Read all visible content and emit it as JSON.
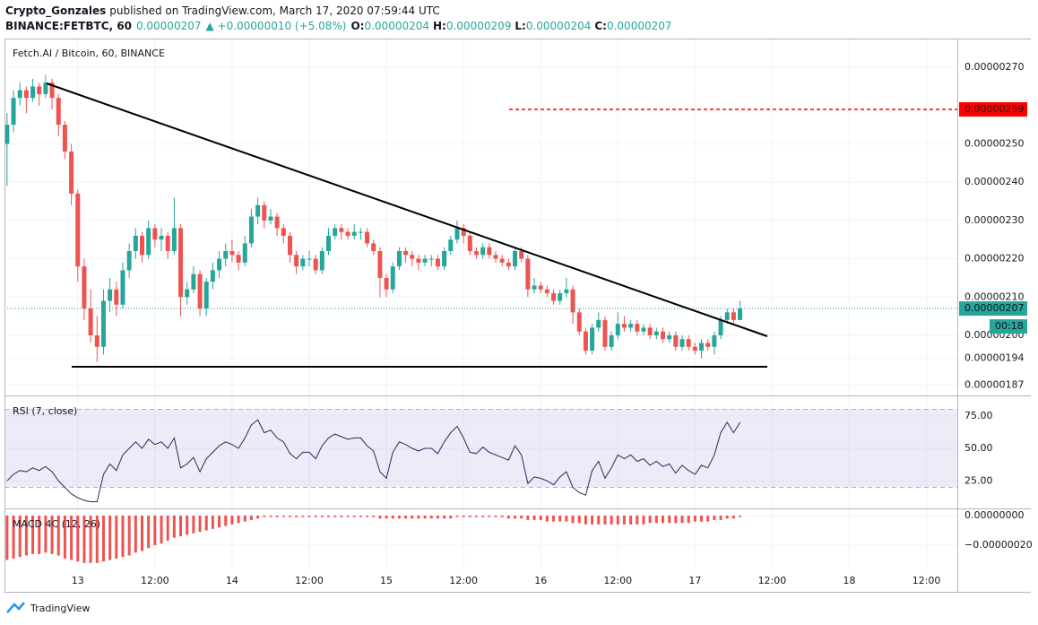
{
  "header": {
    "author": "Crypto_Gonzales",
    "published": "published on TradingView.com, March 17, 2020 07:59:44 UTC",
    "symbol": "BINANCE:FETBTC, 60",
    "last": "0.00000207",
    "change": "▲ +0.00000010 (+5.08%)",
    "quote": [
      {
        "label": "O:",
        "value": "0.00000204"
      },
      {
        "label": "H:",
        "value": "0.00000209"
      },
      {
        "label": "L:",
        "value": "0.00000204"
      },
      {
        "label": "C:",
        "value": "0.00000207"
      }
    ]
  },
  "footer": {
    "brand": "TradingView"
  },
  "chart_data": {
    "type": "candlestick",
    "title": "Fetch.AI / Bitcoin, 60, BINANCE",
    "up_color": "#26a69a",
    "down_color": "#ef5350",
    "grid": true,
    "xlim": [
      -11.4,
      136.8
    ],
    "xticks": [
      {
        "value": 0,
        "label": "13"
      },
      {
        "value": 12,
        "label": "12:00"
      },
      {
        "value": 24,
        "label": "14"
      },
      {
        "value": 36,
        "label": "12:00"
      },
      {
        "value": 48,
        "label": "15"
      },
      {
        "value": 60,
        "label": "12:00"
      },
      {
        "value": 72,
        "label": "16"
      },
      {
        "value": 84,
        "label": "12:00"
      },
      {
        "value": 96,
        "label": "17"
      },
      {
        "value": 108,
        "label": "12:00"
      },
      {
        "value": 120,
        "label": "18"
      },
      {
        "value": 132,
        "label": "12:00"
      }
    ],
    "ylim": [
      1.843e-06,
      2.775e-06
    ],
    "yticks": [
      {
        "value": 1.87e-06,
        "label": "0.00000187"
      },
      {
        "value": 1.94e-06,
        "label": "0.00000194"
      },
      {
        "value": 2e-06,
        "label": "0.00000200"
      },
      {
        "value": 2.1e-06,
        "label": "0.00000210"
      },
      {
        "value": 2.2e-06,
        "label": "0.00000220"
      },
      {
        "value": 2.3e-06,
        "label": "0.00000230"
      },
      {
        "value": 2.4e-06,
        "label": "0.00000240"
      },
      {
        "value": 2.5e-06,
        "label": "0.00000250"
      },
      {
        "value": 2.7e-06,
        "label": "0.00000270"
      }
    ],
    "lines": [
      {
        "value": 2.59e-06,
        "label": "0.00000259",
        "color": "#ff0000"
      }
    ],
    "last_price": {
      "value": 2.07e-06,
      "label": "0.00000207",
      "countdown": "00:18",
      "color": "#26a69a"
    },
    "x": [
      -11,
      -10,
      -9,
      -8,
      -7,
      -6,
      -5,
      -4,
      -3,
      -2,
      -1,
      0,
      1,
      2,
      3,
      4,
      5,
      6,
      7,
      8,
      9,
      10,
      11,
      12,
      13,
      14,
      15,
      16,
      17,
      18,
      19,
      20,
      21,
      22,
      23,
      24,
      25,
      26,
      27,
      28,
      29,
      30,
      31,
      32,
      33,
      34,
      35,
      36,
      37,
      38,
      39,
      40,
      41,
      42,
      43,
      44,
      45,
      46,
      47,
      48,
      49,
      50,
      51,
      52,
      53,
      54,
      55,
      56,
      57,
      58,
      59,
      60,
      61,
      62,
      63,
      64,
      65,
      66,
      67,
      68,
      69,
      70,
      71,
      72,
      73,
      74,
      75,
      76,
      77,
      78,
      79,
      80,
      81,
      82,
      83,
      84,
      85,
      86,
      87,
      88,
      89,
      90,
      91,
      92,
      93,
      94,
      95,
      96,
      97,
      98,
      99,
      100,
      101,
      102,
      103
    ],
    "ohlc": [
      [
        2.5e-06,
        2.58e-06,
        2.39e-06,
        2.55e-06
      ],
      [
        2.55e-06,
        2.64e-06,
        2.53e-06,
        2.62e-06
      ],
      [
        2.62e-06,
        2.66e-06,
        2.6e-06,
        2.64e-06
      ],
      [
        2.64e-06,
        2.65e-06,
        2.58e-06,
        2.62e-06
      ],
      [
        2.62e-06,
        2.67e-06,
        2.61e-06,
        2.65e-06
      ],
      [
        2.65e-06,
        2.66e-06,
        2.6e-06,
        2.63e-06
      ],
      [
        2.63e-06,
        2.68e-06,
        2.62e-06,
        2.66e-06
      ],
      [
        2.66e-06,
        2.67e-06,
        2.59e-06,
        2.62e-06
      ],
      [
        2.62e-06,
        2.63e-06,
        2.52e-06,
        2.55e-06
      ],
      [
        2.55e-06,
        2.56e-06,
        2.46e-06,
        2.48e-06
      ],
      [
        2.48e-06,
        2.5e-06,
        2.34e-06,
        2.37e-06
      ],
      [
        2.37e-06,
        2.38e-06,
        2.14e-06,
        2.18e-06
      ],
      [
        2.18e-06,
        2.2e-06,
        2.04e-06,
        2.07e-06
      ],
      [
        2.07e-06,
        2.12e-06,
        1.98e-06,
        2e-06
      ],
      [
        2e-06,
        2.05e-06,
        1.93e-06,
        1.97e-06
      ],
      [
        1.97e-06,
        2.12e-06,
        1.95e-06,
        2.09e-06
      ],
      [
        2.09e-06,
        2.15e-06,
        2.06e-06,
        2.12e-06
      ],
      [
        2.12e-06,
        2.14e-06,
        2.05e-06,
        2.08e-06
      ],
      [
        2.08e-06,
        2.19e-06,
        2.07e-06,
        2.17e-06
      ],
      [
        2.17e-06,
        2.24e-06,
        2.15e-06,
        2.22e-06
      ],
      [
        2.22e-06,
        2.28e-06,
        2.2e-06,
        2.26e-06
      ],
      [
        2.26e-06,
        2.27e-06,
        2.19e-06,
        2.21e-06
      ],
      [
        2.21e-06,
        2.3e-06,
        2.2e-06,
        2.28e-06
      ],
      [
        2.28e-06,
        2.29e-06,
        2.23e-06,
        2.25e-06
      ],
      [
        2.25e-06,
        2.28e-06,
        2.22e-06,
        2.26e-06
      ],
      [
        2.26e-06,
        2.27e-06,
        2.2e-06,
        2.22e-06
      ],
      [
        2.22e-06,
        2.36e-06,
        2.21e-06,
        2.28e-06
      ],
      [
        2.28e-06,
        2.29e-06,
        2.05e-06,
        2.1e-06
      ],
      [
        2.1e-06,
        2.14e-06,
        2.08e-06,
        2.12e-06
      ],
      [
        2.12e-06,
        2.18e-06,
        2.11e-06,
        2.16e-06
      ],
      [
        2.16e-06,
        2.17e-06,
        2.05e-06,
        2.07e-06
      ],
      [
        2.07e-06,
        2.15e-06,
        2.05e-06,
        2.14e-06
      ],
      [
        2.14e-06,
        2.19e-06,
        2.12e-06,
        2.17e-06
      ],
      [
        2.17e-06,
        2.22e-06,
        2.15e-06,
        2.2e-06
      ],
      [
        2.2e-06,
        2.24e-06,
        2.18e-06,
        2.22e-06
      ],
      [
        2.22e-06,
        2.25e-06,
        2.19e-06,
        2.21e-06
      ],
      [
        2.21e-06,
        2.22e-06,
        2.17e-06,
        2.19e-06
      ],
      [
        2.19e-06,
        2.26e-06,
        2.18e-06,
        2.24e-06
      ],
      [
        2.24e-06,
        2.33e-06,
        2.23e-06,
        2.31e-06
      ],
      [
        2.31e-06,
        2.36e-06,
        2.29e-06,
        2.34e-06
      ],
      [
        2.34e-06,
        2.35e-06,
        2.28e-06,
        2.3e-06
      ],
      [
        2.3e-06,
        2.33e-06,
        2.29e-06,
        2.31e-06
      ],
      [
        2.31e-06,
        2.32e-06,
        2.26e-06,
        2.28e-06
      ],
      [
        2.28e-06,
        2.29e-06,
        2.24e-06,
        2.26e-06
      ],
      [
        2.26e-06,
        2.27e-06,
        2.19e-06,
        2.21e-06
      ],
      [
        2.21e-06,
        2.22e-06,
        2.16e-06,
        2.18e-06
      ],
      [
        2.18e-06,
        2.21e-06,
        2.17e-06,
        2.2e-06
      ],
      [
        2.2e-06,
        2.22e-06,
        2.18e-06,
        2.2e-06
      ],
      [
        2.2e-06,
        2.21e-06,
        2.16e-06,
        2.17e-06
      ],
      [
        2.17e-06,
        2.23e-06,
        2.16e-06,
        2.22e-06
      ],
      [
        2.22e-06,
        2.28e-06,
        2.21e-06,
        2.26e-06
      ],
      [
        2.26e-06,
        2.29e-06,
        2.25e-06,
        2.28e-06
      ],
      [
        2.28e-06,
        2.29e-06,
        2.25e-06,
        2.27e-06
      ],
      [
        2.27e-06,
        2.28e-06,
        2.25e-06,
        2.26e-06
      ],
      [
        2.26e-06,
        2.29e-06,
        2.25e-06,
        2.27e-06
      ],
      [
        2.27e-06,
        2.28e-06,
        2.25e-06,
        2.27e-06
      ],
      [
        2.27e-06,
        2.28e-06,
        2.23e-06,
        2.24e-06
      ],
      [
        2.24e-06,
        2.25e-06,
        2.21e-06,
        2.22e-06
      ],
      [
        2.22e-06,
        2.23e-06,
        2.1e-06,
        2.15e-06
      ],
      [
        2.15e-06,
        2.16e-06,
        2.1e-06,
        2.12e-06
      ],
      [
        2.12e-06,
        2.19e-06,
        2.11e-06,
        2.18e-06
      ],
      [
        2.18e-06,
        2.23e-06,
        2.17e-06,
        2.22e-06
      ],
      [
        2.22e-06,
        2.23e-06,
        2.19e-06,
        2.21e-06
      ],
      [
        2.21e-06,
        2.22e-06,
        2.18e-06,
        2.2e-06
      ],
      [
        2.2e-06,
        2.21e-06,
        2.17e-06,
        2.19e-06
      ],
      [
        2.19e-06,
        2.21e-06,
        2.18e-06,
        2.2e-06
      ],
      [
        2.2e-06,
        2.21e-06,
        2.18e-06,
        2.2e-06
      ],
      [
        2.2e-06,
        2.21e-06,
        2.17e-06,
        2.18e-06
      ],
      [
        2.18e-06,
        2.23e-06,
        2.17e-06,
        2.22e-06
      ],
      [
        2.22e-06,
        2.26e-06,
        2.21e-06,
        2.25e-06
      ],
      [
        2.25e-06,
        2.3e-06,
        2.24e-06,
        2.28e-06
      ],
      [
        2.28e-06,
        2.29e-06,
        2.24e-06,
        2.26e-06
      ],
      [
        2.26e-06,
        2.27e-06,
        2.21e-06,
        2.22e-06
      ],
      [
        2.22e-06,
        2.23e-06,
        2.2e-06,
        2.21e-06
      ],
      [
        2.21e-06,
        2.24e-06,
        2.2e-06,
        2.23e-06
      ],
      [
        2.23e-06,
        2.24e-06,
        2.2e-06,
        2.21e-06
      ],
      [
        2.21e-06,
        2.22e-06,
        2.19e-06,
        2.2e-06
      ],
      [
        2.2e-06,
        2.21e-06,
        2.18e-06,
        2.19e-06
      ],
      [
        2.19e-06,
        2.2e-06,
        2.17e-06,
        2.18e-06
      ],
      [
        2.18e-06,
        2.23e-06,
        2.17e-06,
        2.22e-06
      ],
      [
        2.22e-06,
        2.23e-06,
        2.19e-06,
        2.2e-06
      ],
      [
        2.2e-06,
        2.21e-06,
        2.1e-06,
        2.12e-06
      ],
      [
        2.12e-06,
        2.15e-06,
        2.11e-06,
        2.13e-06
      ],
      [
        2.13e-06,
        2.14e-06,
        2.11e-06,
        2.12e-06
      ],
      [
        2.12e-06,
        2.13e-06,
        2.1e-06,
        2.11e-06
      ],
      [
        2.11e-06,
        2.12e-06,
        2.08e-06,
        2.09e-06
      ],
      [
        2.09e-06,
        2.12e-06,
        2.08e-06,
        2.11e-06
      ],
      [
        2.11e-06,
        2.15e-06,
        2.1e-06,
        2.12e-06
      ],
      [
        2.12e-06,
        2.13e-06,
        2.03e-06,
        2.06e-06
      ],
      [
        2.06e-06,
        2.07e-06,
        2e-06,
        2.01e-06
      ],
      [
        2.01e-06,
        2.02e-06,
        1.95e-06,
        1.96e-06
      ],
      [
        1.96e-06,
        2.03e-06,
        1.95e-06,
        2.02e-06
      ],
      [
        2.02e-06,
        2.06e-06,
        2.01e-06,
        2.04e-06
      ],
      [
        2.04e-06,
        2.05e-06,
        1.96e-06,
        1.97e-06
      ],
      [
        1.97e-06,
        2.01e-06,
        1.96e-06,
        2e-06
      ],
      [
        2e-06,
        2.06e-06,
        1.99e-06,
        2.03e-06
      ],
      [
        2.03e-06,
        2.05e-06,
        2.01e-06,
        2.02e-06
      ],
      [
        2.02e-06,
        2.04e-06,
        2.01e-06,
        2.03e-06
      ],
      [
        2.03e-06,
        2.04e-06,
        2e-06,
        2.01e-06
      ],
      [
        2.01e-06,
        2.03e-06,
        2e-06,
        2.02e-06
      ],
      [
        2.02e-06,
        2.03e-06,
        1.99e-06,
        2e-06
      ],
      [
        2e-06,
        2.02e-06,
        1.99e-06,
        2.01e-06
      ],
      [
        2.01e-06,
        2.02e-06,
        1.98e-06,
        1.99e-06
      ],
      [
        1.99e-06,
        2.01e-06,
        1.98e-06,
        2e-06
      ],
      [
        2e-06,
        2.01e-06,
        1.96e-06,
        1.97e-06
      ],
      [
        1.97e-06,
        2e-06,
        1.96e-06,
        1.99e-06
      ],
      [
        1.99e-06,
        2e-06,
        1.96e-06,
        1.97e-06
      ],
      [
        1.97e-06,
        1.98e-06,
        1.95e-06,
        1.96e-06
      ],
      [
        1.96e-06,
        1.99e-06,
        1.94e-06,
        1.98e-06
      ],
      [
        1.98e-06,
        1.99e-06,
        1.96e-06,
        1.97e-06
      ],
      [
        1.97e-06,
        2.01e-06,
        1.95e-06,
        2e-06
      ],
      [
        2e-06,
        2.05e-06,
        1.99e-06,
        2.04e-06
      ],
      [
        2.04e-06,
        2.07e-06,
        2.03e-06,
        2.06e-06
      ],
      [
        2.06e-06,
        2.07e-06,
        2.03e-06,
        2.04e-06
      ],
      [
        2.04e-06,
        2.09e-06,
        2.04e-06,
        2.07e-06
      ]
    ],
    "indicators": [
      {
        "type": "line",
        "name": "RSI (7, close)",
        "color": "#1e2f5a",
        "band": [
          20,
          80
        ],
        "band_color": "#9575cd",
        "ylim": [
          3.8,
          90.7
        ],
        "yticks": [
          {
            "value": 25,
            "label": "25.00"
          },
          {
            "value": 50,
            "label": "50.00"
          },
          {
            "value": 75,
            "label": "75.00"
          }
        ],
        "values": [
          25,
          30,
          33,
          32,
          35,
          33,
          36,
          32,
          25,
          20,
          15,
          12,
          10,
          9,
          9,
          30,
          38,
          33,
          45,
          50,
          55,
          50,
          57,
          53,
          55,
          50,
          58,
          35,
          38,
          43,
          32,
          42,
          47,
          52,
          55,
          53,
          50,
          58,
          68,
          72,
          62,
          64,
          58,
          55,
          46,
          42,
          47,
          47,
          42,
          52,
          58,
          61,
          59,
          57,
          58,
          58,
          52,
          48,
          32,
          27,
          47,
          55,
          53,
          50,
          48,
          50,
          50,
          46,
          55,
          62,
          67,
          58,
          47,
          46,
          51,
          47,
          45,
          43,
          41,
          52,
          45,
          23,
          28,
          27,
          25,
          22,
          28,
          32,
          20,
          16,
          14,
          33,
          40,
          27,
          35,
          45,
          42,
          45,
          40,
          42,
          37,
          40,
          36,
          38,
          31,
          37,
          33,
          30,
          37,
          35,
          45,
          62,
          70,
          62,
          70
        ]
      },
      {
        "type": "bar",
        "name": "MACD 4C (12, 26)",
        "color": "#ef5350",
        "ylim": [
          -3.64e-07,
          4.85e-08
        ],
        "yticks": [
          {
            "value": -2e-07,
            "label": "−0.00000020"
          },
          {
            "value": 0,
            "label": "0.00000000"
          }
        ],
        "values": [
          -3e-07,
          -2.9e-07,
          -2.8e-07,
          -2.7e-07,
          -2.6e-07,
          -2.6e-07,
          -2.5e-07,
          -2.6e-07,
          -2.7e-07,
          -2.9e-07,
          -3e-07,
          -3.1e-07,
          -3.2e-07,
          -3.2e-07,
          -3.2e-07,
          -3.1e-07,
          -3e-07,
          -2.9e-07,
          -2.8e-07,
          -2.7e-07,
          -2.5e-07,
          -2.4e-07,
          -2.2e-07,
          -2e-07,
          -1.9e-07,
          -1.7e-07,
          -1.5e-07,
          -1.4e-07,
          -1.3e-07,
          -1.2e-07,
          -1.1e-07,
          -1e-07,
          -9e-08,
          -8e-08,
          -7e-08,
          -6e-08,
          -5e-08,
          -4e-08,
          -3e-08,
          -2e-08,
          -1e-08,
          -1e-08,
          -1e-08,
          -1e-08,
          -1e-08,
          -1e-08,
          -1e-08,
          -1e-08,
          -1e-08,
          -1e-08,
          -1e-08,
          -1e-08,
          -1e-08,
          -1e-08,
          -1e-08,
          -1e-08,
          -1e-08,
          -1e-08,
          -2e-08,
          -2e-08,
          -2e-08,
          -2e-08,
          -2e-08,
          -2e-08,
          -2e-08,
          -2e-08,
          -2e-08,
          -2e-08,
          -2e-08,
          -2e-08,
          -1e-08,
          -1e-08,
          -1e-08,
          -1e-08,
          -1e-08,
          -1e-08,
          -1e-08,
          -1e-08,
          -2e-08,
          -2e-08,
          -2e-08,
          -3e-08,
          -3e-08,
          -3e-08,
          -4e-08,
          -4e-08,
          -4e-08,
          -4e-08,
          -5e-08,
          -5e-08,
          -6e-08,
          -6e-08,
          -6e-08,
          -6e-08,
          -6e-08,
          -6e-08,
          -6e-08,
          -6e-08,
          -6e-08,
          -6e-08,
          -5e-08,
          -5e-08,
          -5e-08,
          -5e-08,
          -5e-08,
          -5e-08,
          -5e-08,
          -4e-08,
          -4e-08,
          -4e-08,
          -3e-08,
          -3e-08,
          -2e-08,
          -2e-08,
          -1e-08
        ]
      }
    ]
  }
}
